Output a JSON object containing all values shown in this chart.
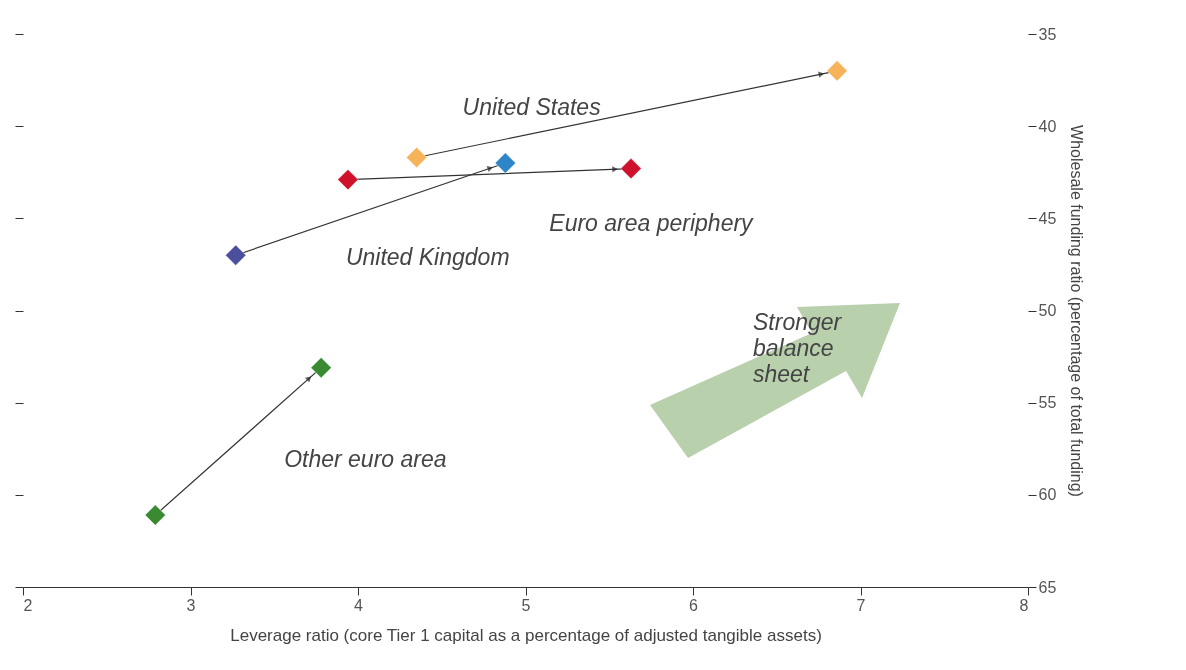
{
  "chart_data": {
    "type": "line",
    "xlabel": "Leverage ratio (core Tier 1 capital as a percentage of adjusted tangible assets)",
    "ylabel": "Wholesale funding ratio (percentage of total funding)",
    "xlim": [
      2,
      8
    ],
    "xticks": [
      2,
      3,
      4,
      5,
      6,
      7,
      8
    ],
    "ylim": [
      65,
      35
    ],
    "yticks": [
      35,
      40,
      45,
      50,
      55,
      60,
      65
    ],
    "marker": "diamond",
    "legend": false,
    "grid": false,
    "annotations": [
      "Stronger balance sheet"
    ],
    "series": [
      {
        "name": "United States",
        "x": [
          4.35,
          6.86
        ],
        "values": [
          41.7,
          37.0
        ],
        "colors": [
          "#f7b35a",
          "#f7b35a"
        ]
      },
      {
        "name": "Euro area periphery",
        "x": [
          3.94,
          5.63
        ],
        "values": [
          42.9,
          42.3
        ],
        "colors": [
          "#d0112b",
          "#d0112b"
        ]
      },
      {
        "name": "United Kingdom",
        "x": [
          3.27,
          4.88
        ],
        "values": [
          47.0,
          42.0
        ],
        "colors": [
          "#4b4f9e",
          "#2e86c8"
        ]
      },
      {
        "name": "Other euro area",
        "x": [
          2.79,
          3.78
        ],
        "values": [
          61.1,
          53.1
        ],
        "colors": [
          "#3a8a32",
          "#3a8a32"
        ]
      }
    ]
  }
}
